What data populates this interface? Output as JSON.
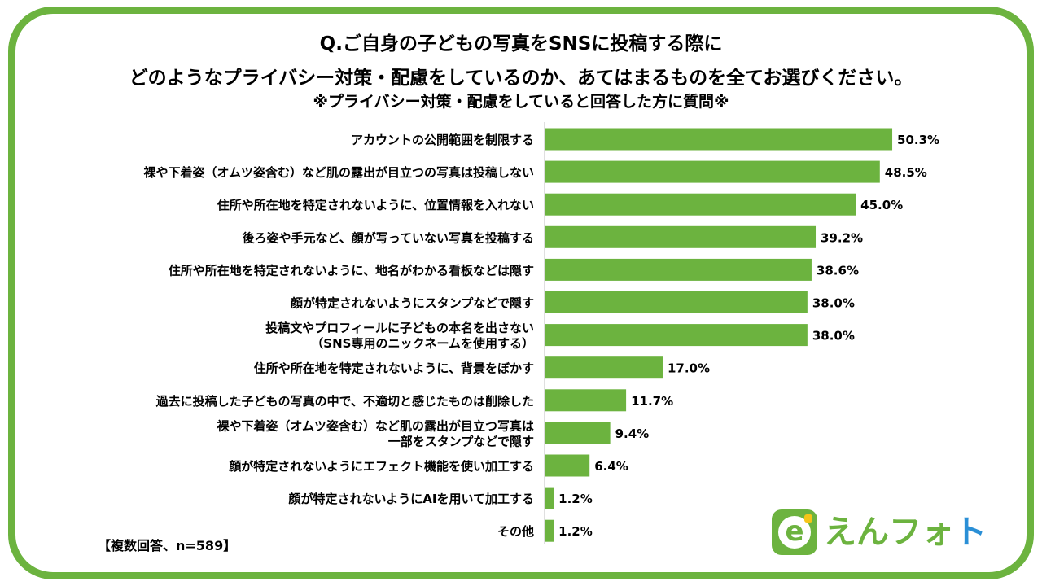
{
  "title": {
    "line1": "Q.ご自身の子どもの写真をSNSに投稿する際に",
    "line2": "どのようなプライバシー対策・配慮をしているのか、あてはまるものを全てお選びください。",
    "line3": "※プライバシー対策・配慮をしていると回答した方に質問※"
  },
  "note": "【複数回答、n=589】",
  "logo": {
    "icon_letter": "e",
    "text_part1": "えん",
    "text_part2": "フォ",
    "text_part3": "ト"
  },
  "colors": {
    "bar": "#6cb33f",
    "frame": "#6cb33f",
    "logo_blue": "#2a8fd6"
  },
  "chart_data": {
    "type": "bar",
    "orientation": "horizontal",
    "unit": "%",
    "xlim": [
      0,
      100
    ],
    "categories": [
      [
        "アカウントの公開範囲を制限する"
      ],
      [
        "裸や下着姿（オムツ姿含む）など肌の露出が目立つの写真は投稿しない"
      ],
      [
        "住所や所在地を特定されないように、位置情報を入れない"
      ],
      [
        "後ろ姿や手元など、顔が写っていない写真を投稿する"
      ],
      [
        "住所や所在地を特定されないように、地名がわかる看板などは隠す"
      ],
      [
        "顔が特定されないようにスタンプなどで隠す"
      ],
      [
        "投稿文やプロフィールに子どもの本名を出さない",
        "（SNS専用のニックネームを使用する）"
      ],
      [
        "住所や所在地を特定されないように、背景をぼかす"
      ],
      [
        "過去に投稿した子どもの写真の中で、不適切と感じたものは削除した"
      ],
      [
        "裸や下着姿（オムツ姿含む）など肌の露出が目立つ写真は",
        "一部をスタンプなどで隠す"
      ],
      [
        "顔が特定されないようにエフェクト機能を使い加工する"
      ],
      [
        "顔が特定されないようにAIを用いて加工する"
      ],
      [
        "その他"
      ]
    ],
    "values": [
      50.3,
      48.5,
      45.0,
      39.2,
      38.6,
      38.0,
      38.0,
      17.0,
      11.7,
      9.4,
      6.4,
      1.2,
      1.2
    ],
    "value_labels": [
      "50.3%",
      "48.5%",
      "45.0%",
      "39.2%",
      "38.6%",
      "38.0%",
      "38.0%",
      "17.0%",
      "11.7%",
      "9.4%",
      "6.4%",
      "1.2%",
      "1.2%"
    ]
  }
}
